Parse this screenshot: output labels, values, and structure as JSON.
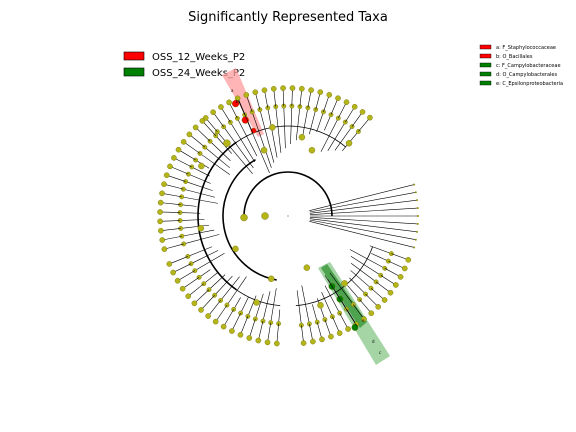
{
  "title": "Significantly Represented Taxa",
  "groups": [
    {
      "name": "OSS_12_Weeks_P2",
      "color": "#ff0000"
    },
    {
      "name": "OSS_24_Weeks_P2",
      "color": "#008000"
    }
  ],
  "taxa_legend": [
    {
      "label": "a: F_Staphylococcaceae",
      "color": "#ff0000"
    },
    {
      "label": "b: O_Bacillales",
      "color": "#ff0000"
    },
    {
      "label": "c: F_Campylobacteraceae",
      "color": "#008000"
    },
    {
      "label": "d: O_Campylobacterales",
      "color": "#008000"
    },
    {
      "label": "e: C_Epsilonproteobacteria",
      "color": "#008000"
    }
  ],
  "highlight_letters": {
    "red": [
      "a",
      "b"
    ],
    "green": [
      "e",
      "d",
      "c"
    ]
  },
  "colors": {
    "node": "#b5b51a",
    "node_edge": "#6b6b00",
    "line": "#000000",
    "red_shade": "#ff9c9c",
    "green_shade": "#7fc27f"
  }
}
